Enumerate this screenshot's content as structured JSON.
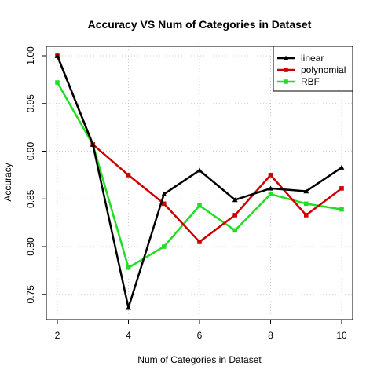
{
  "chart_data": {
    "type": "line",
    "title": "Accuracy VS Num of Categories in Dataset",
    "xlabel": "Num of Categories in Dataset",
    "ylabel": "Accuracy",
    "x": [
      2,
      3,
      4,
      5,
      6,
      7,
      8,
      9,
      10
    ],
    "xlim": [
      2,
      10
    ],
    "ylim": [
      0.735,
      1.0
    ],
    "xticks": [
      2,
      4,
      6,
      8,
      10
    ],
    "yticks": [
      0.75,
      0.8,
      0.85,
      0.9,
      0.95,
      1.0
    ],
    "ytick_labels": [
      "0.75",
      "0.80",
      "0.85",
      "0.90",
      "0.95",
      "1.00"
    ],
    "grid": true,
    "legend_position": "top-right",
    "series": [
      {
        "name": "linear",
        "color": "#000000",
        "marker": "triangle",
        "values": [
          1.0,
          0.907,
          0.736,
          0.855,
          0.88,
          0.849,
          0.861,
          0.858,
          0.883
        ]
      },
      {
        "name": "polynomial",
        "color": "#cc0000",
        "marker": "square",
        "values": [
          1.0,
          0.907,
          0.875,
          0.845,
          0.805,
          0.833,
          0.875,
          0.833,
          0.861
        ]
      },
      {
        "name": "RBF",
        "color": "#22dd22",
        "marker": "square",
        "values": [
          0.972,
          0.907,
          0.778,
          0.8,
          0.843,
          0.817,
          0.855,
          0.845,
          0.839
        ]
      }
    ]
  }
}
